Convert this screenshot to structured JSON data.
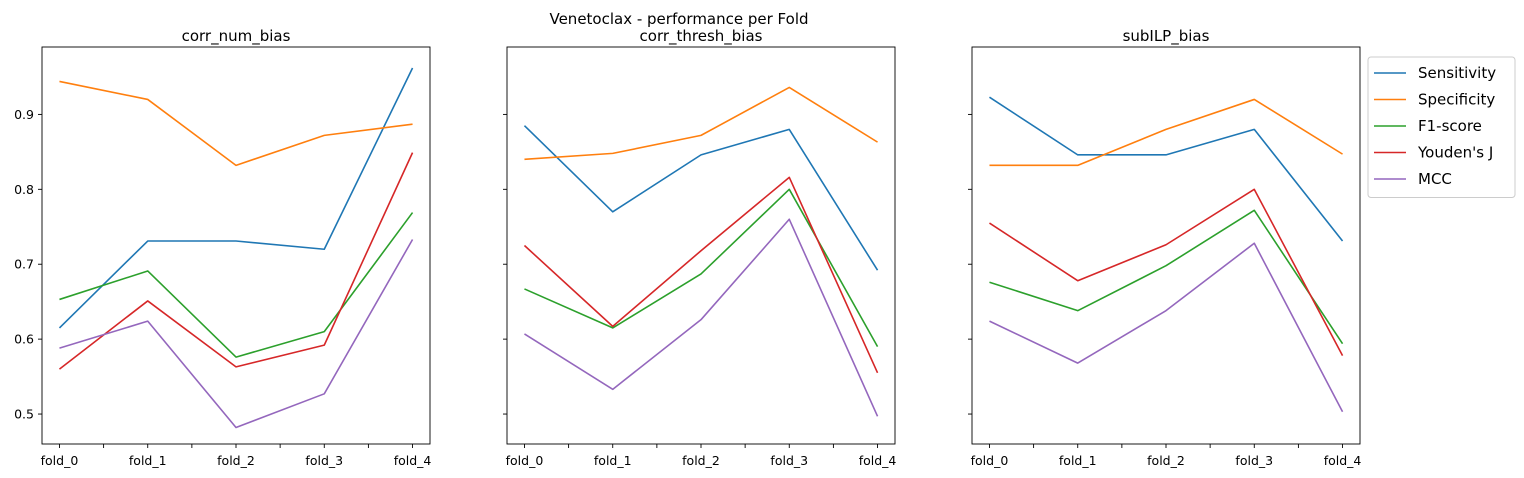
{
  "suptitle": "Venetoclax - performance per Fold",
  "colors": {
    "Sensitivity": "#1f77b4",
    "Specificity": "#ff7f0e",
    "F1-score": "#2ca02c",
    "Youden's J": "#d62728",
    "MCC": "#9467bd"
  },
  "legend": {
    "placement": "outside-right",
    "entries": [
      "Sensitivity",
      "Specificity",
      "F1-score",
      "Youden's J",
      "MCC"
    ]
  },
  "chart_data": [
    {
      "type": "line",
      "title": "corr_num_bias",
      "categories": [
        "fold_0",
        "fold_1",
        "fold_2",
        "fold_3",
        "fold_4"
      ],
      "ylim": [
        0.46,
        0.99
      ],
      "yticks": [
        0.5,
        0.6,
        0.7,
        0.8,
        0.9
      ],
      "ytick_labels_visible": true,
      "grid": false,
      "series": [
        {
          "name": "Sensitivity",
          "values": [
            0.615,
            0.731,
            0.731,
            0.72,
            0.962
          ]
        },
        {
          "name": "Specificity",
          "values": [
            0.944,
            0.92,
            0.832,
            0.872,
            0.887
          ]
        },
        {
          "name": "F1-score",
          "values": [
            0.653,
            0.691,
            0.576,
            0.61,
            0.769
          ]
        },
        {
          "name": "Youden's J",
          "values": [
            0.56,
            0.651,
            0.563,
            0.592,
            0.849
          ]
        },
        {
          "name": "MCC",
          "values": [
            0.588,
            0.624,
            0.482,
            0.527,
            0.733
          ]
        }
      ]
    },
    {
      "type": "line",
      "title": "corr_thresh_bias",
      "categories": [
        "fold_0",
        "fold_1",
        "fold_2",
        "fold_3",
        "fold_4"
      ],
      "ylim": [
        0.46,
        0.99
      ],
      "yticks": [
        0.5,
        0.6,
        0.7,
        0.8,
        0.9
      ],
      "ytick_labels_visible": false,
      "grid": false,
      "series": [
        {
          "name": "Sensitivity",
          "values": [
            0.885,
            0.77,
            0.846,
            0.88,
            0.692
          ]
        },
        {
          "name": "Specificity",
          "values": [
            0.84,
            0.848,
            0.872,
            0.936,
            0.863
          ]
        },
        {
          "name": "F1-score",
          "values": [
            0.667,
            0.615,
            0.687,
            0.8,
            0.59
          ]
        },
        {
          "name": "Youden's J",
          "values": [
            0.725,
            0.617,
            0.718,
            0.816,
            0.555
          ]
        },
        {
          "name": "MCC",
          "values": [
            0.607,
            0.533,
            0.626,
            0.76,
            0.497
          ]
        }
      ]
    },
    {
      "type": "line",
      "title": "subILP_bias",
      "categories": [
        "fold_0",
        "fold_1",
        "fold_2",
        "fold_3",
        "fold_4"
      ],
      "ylim": [
        0.46,
        0.99
      ],
      "yticks": [
        0.5,
        0.6,
        0.7,
        0.8,
        0.9
      ],
      "ytick_labels_visible": false,
      "grid": false,
      "series": [
        {
          "name": "Sensitivity",
          "values": [
            0.923,
            0.846,
            0.846,
            0.88,
            0.731
          ]
        },
        {
          "name": "Specificity",
          "values": [
            0.832,
            0.832,
            0.88,
            0.92,
            0.847
          ]
        },
        {
          "name": "F1-score",
          "values": [
            0.676,
            0.638,
            0.698,
            0.772,
            0.594
          ]
        },
        {
          "name": "Youden's J",
          "values": [
            0.755,
            0.678,
            0.726,
            0.8,
            0.578
          ]
        },
        {
          "name": "MCC",
          "values": [
            0.624,
            0.568,
            0.638,
            0.728,
            0.503
          ]
        }
      ]
    }
  ]
}
